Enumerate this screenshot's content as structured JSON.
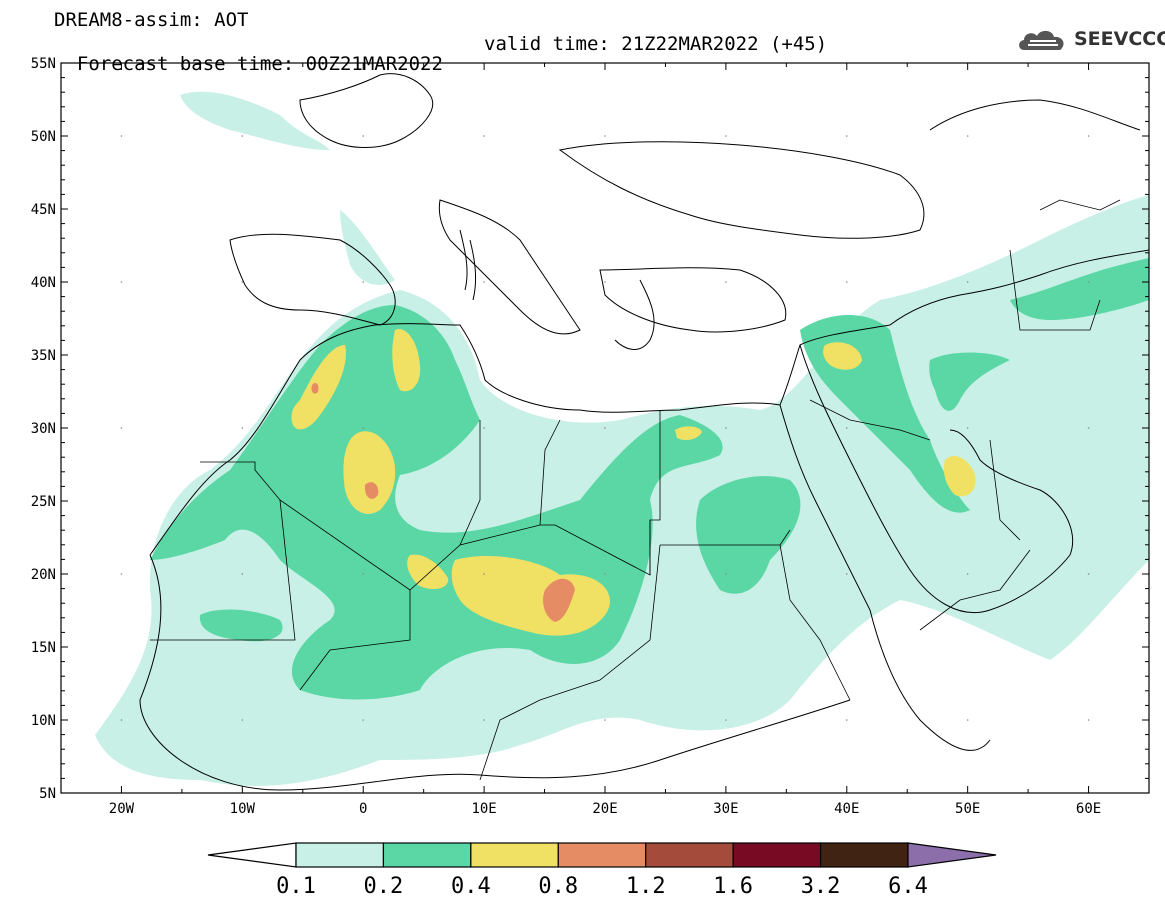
{
  "header": {
    "line1": "DREAM8-assim: AOT",
    "base_time": "Forecast base time: 00Z21MAR2022",
    "valid_time": "valid time: 21Z22MAR2022 (+45)"
  },
  "logo": {
    "text": "SEEVCCC",
    "icon": "cloud-icon"
  },
  "map": {
    "lat_labels": [
      "55N",
      "50N",
      "45N",
      "40N",
      "35N",
      "30N",
      "25N",
      "20N",
      "15N",
      "10N",
      "5N"
    ],
    "lon_labels": [
      "20W",
      "10W",
      "0",
      "10E",
      "20E",
      "30E",
      "40E",
      "50E",
      "60E"
    ],
    "extent": {
      "lon_min": -25,
      "lon_max": 65,
      "lat_min": 5,
      "lat_max": 55
    }
  },
  "colorbar": {
    "labels": [
      "0.1",
      "0.2",
      "0.4",
      "0.8",
      "1.2",
      "1.6",
      "3.2",
      "6.4"
    ],
    "colors": [
      "#ffffff",
      "#c8f0e6",
      "#5ad7a5",
      "#f0e164",
      "#e68c64",
      "#a54b3c",
      "#780a23",
      "#412314",
      "#8c6eaa"
    ]
  }
}
